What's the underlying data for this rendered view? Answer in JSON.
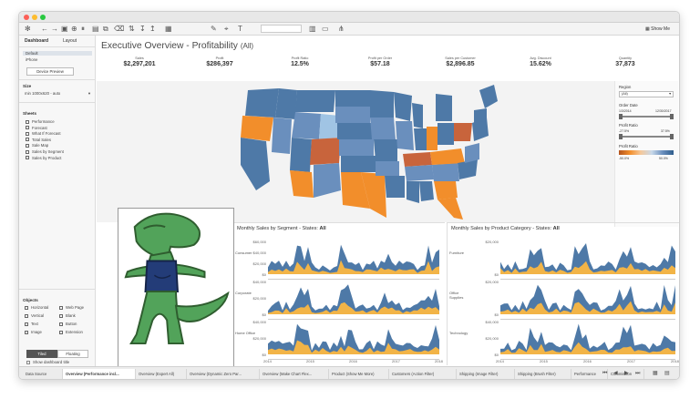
{
  "dashboard": {
    "title_main": "Executive Overview - Profitability",
    "title_suffix": "(All)"
  },
  "toolbar": {
    "show_me": "Show Me"
  },
  "left_pane": {
    "tabs": [
      "Dashboard",
      "Layout"
    ],
    "device_items": [
      "Default",
      "iPhone"
    ],
    "device_preview": "Device Preview",
    "size_header": "Size",
    "size_value": "min 1000x620 - auto",
    "sheets_header": "Sheets",
    "sheets": [
      "Performance",
      "Forecast",
      "What If Forecast",
      "Total Sales",
      "Sale Map",
      "Sales by Segment",
      "Sales by Product"
    ],
    "objects_header": "Objects",
    "objects": [
      "Horizontal",
      "Web Page",
      "Vertical",
      "Blank",
      "Text",
      "Button",
      "Image",
      "Extension"
    ],
    "tiled": "Tiled",
    "floating": "Floating",
    "show_title": "Show dashboard title"
  },
  "kpis": [
    {
      "label": "Sales",
      "value": "$2,297,201"
    },
    {
      "label": "Profit",
      "value": "$286,397"
    },
    {
      "label": "Profit Ratio",
      "value": "12.5%"
    },
    {
      "label": "Profit per Order",
      "value": "$57.18"
    },
    {
      "label": "Sales per Customer",
      "value": "$2,896.85"
    },
    {
      "label": "Avg. Discount",
      "value": "15.62%"
    },
    {
      "label": "Quantity",
      "value": "37,873"
    }
  ],
  "filters": {
    "region_label": "Region",
    "region_value": "(All)",
    "order_date_label": "Order Date",
    "order_date_from": "1/3/2014",
    "order_date_to": "12/30/2017",
    "profit_ratio_label": "Profit Ratio",
    "profit_ratio_min": "-27.5%",
    "profit_ratio_max": "37.5%",
    "legend_label": "Profit Ratio",
    "legend_min": "-50.0%",
    "legend_max": "50.0%"
  },
  "segment_chart": {
    "title_prefix": "Monthly Sales by Segment - States:",
    "title_state": "All",
    "rows": [
      "Consumer",
      "Corporate",
      "Home Office"
    ],
    "yticks": [
      [
        "$60,000",
        "$40,000",
        "$20,000",
        "$0"
      ],
      [
        "$40,000",
        "$20,000",
        "$0"
      ],
      [
        "$40,000",
        "$20,000",
        "$0"
      ]
    ],
    "xticks": [
      "2014",
      "2015",
      "2016",
      "2017",
      "2018"
    ]
  },
  "category_chart": {
    "title_prefix": "Monthly Sales by Product Category - States:",
    "title_state": "All",
    "rows": [
      "Furniture",
      "Office\nSupplies",
      "Technology"
    ],
    "yticks": [
      [
        "$20,000",
        "$0"
      ],
      [
        "$20,000",
        "$0"
      ],
      [
        "$40,000",
        "$20,000",
        "$0"
      ]
    ],
    "xticks": [
      "2014",
      "2015",
      "2016",
      "2017",
      "2018"
    ]
  },
  "sheet_tabs": [
    "Data Source",
    "Overview (Performance incl...",
    "Overview (Expert All)",
    "Overview (Dynamic Zero Par...",
    "Overview (Make Chart Flex...",
    "Product (Show Me More)",
    "Customers (Action Filter)",
    "Shipping (Image Filter)",
    "Shipping (Brush Filter)",
    "Performance",
    "Commission"
  ],
  "colors": {
    "blue": "#4e79a7",
    "orange": "#f28e2b",
    "lightblue": "#a0c4e4",
    "brown": "#c8643c"
  }
}
